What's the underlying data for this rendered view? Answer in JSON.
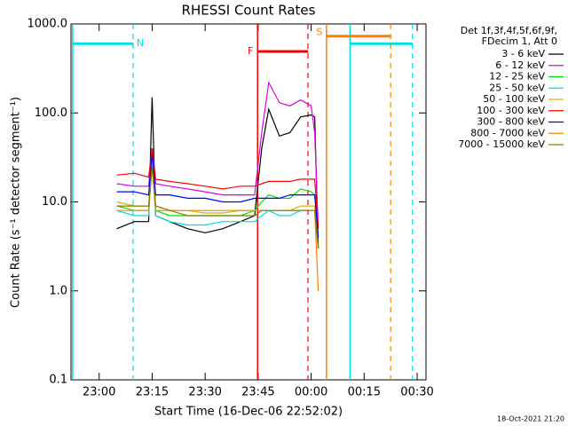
{
  "chart_data": {
    "type": "line",
    "title": "RHESSI Count Rates",
    "xlabel": "Start Time (16-Dec-06 22:52:02)",
    "ylabel": "Count Rate (s⁻¹ detector segment⁻¹)",
    "legend_title": [
      "Det 1f,3f,4f,5f,6f,9f,",
      "FDecim 1, Att 0"
    ],
    "footer": "18-Oct-2021 21:20",
    "log_y": true,
    "xlim": [
      "22:52:02",
      "00:32:30"
    ],
    "xticks": [
      "23:00",
      "23:15",
      "23:30",
      "23:45",
      "00:00",
      "00:15",
      "00:30"
    ],
    "ylim": [
      0.1,
      1000
    ],
    "yticks": [
      0.1,
      {
        "value": 1,
        "label": "1.0"
      },
      {
        "value": 10,
        "label": "10.0"
      },
      {
        "value": 100,
        "label": "100.0"
      },
      {
        "value": 1000,
        "label": "1000.0"
      }
    ],
    "x": [
      "23:05",
      "23:10",
      "23:14",
      "23:15",
      "23:16",
      "23:20",
      "23:25",
      "23:30",
      "23:35",
      "23:40",
      "23:44",
      "23:46",
      "23:48",
      "23:51",
      "23:54",
      "23:57",
      "00:00",
      "00:01",
      "00:02"
    ],
    "series": [
      {
        "name": "3 - 6 keV",
        "color": "#000000",
        "values": [
          5,
          6,
          6,
          150,
          7,
          6,
          5,
          4.5,
          5,
          6,
          7,
          40,
          110,
          55,
          60,
          90,
          95,
          90,
          3
        ]
      },
      {
        "name": "6 - 12 keV",
        "color": "#e000e0",
        "values": [
          16,
          15,
          15,
          40,
          16,
          15,
          14,
          13,
          12,
          12,
          12,
          60,
          220,
          130,
          120,
          140,
          120,
          60,
          5
        ]
      },
      {
        "name": "12 - 25 keV",
        "color": "#00e000",
        "values": [
          9,
          8,
          8,
          30,
          8,
          7,
          7,
          7,
          7,
          7,
          8,
          10,
          12,
          11,
          11,
          14,
          13,
          12,
          4
        ]
      },
      {
        "name": "25 - 50 keV",
        "color": "#00e0e0",
        "values": [
          8,
          7,
          7,
          30,
          7,
          6,
          5.5,
          5.5,
          6,
          6,
          6,
          7,
          8,
          7,
          7,
          8,
          8,
          8,
          3
        ]
      },
      {
        "name": "50 - 100 keV",
        "color": "#e0b000",
        "values": [
          10,
          9,
          9,
          30,
          9,
          8,
          8,
          7.5,
          7.5,
          8,
          8,
          8,
          8,
          8,
          8,
          9,
          9,
          9,
          3
        ]
      },
      {
        "name": "100 - 300 keV",
        "color": "#ff0000",
        "values": [
          20,
          21,
          19,
          40,
          18,
          17,
          16,
          15,
          14,
          15,
          15,
          16,
          17,
          17,
          17,
          18,
          18,
          18,
          5
        ]
      },
      {
        "name": "300 - 800 keV",
        "color": "#0000ff",
        "values": [
          13,
          13,
          12,
          35,
          12,
          12,
          11,
          11,
          10,
          10,
          11,
          11,
          11,
          11,
          12,
          12,
          12,
          12,
          4
        ]
      },
      {
        "name": "800 - 7000 keV",
        "color": "#ff8000",
        "values": [
          8,
          8,
          8,
          25,
          8,
          8,
          8,
          8,
          8,
          8,
          8,
          8,
          8,
          8,
          8,
          8,
          8,
          8,
          1
        ]
      },
      {
        "name": "7000 - 15000 keV",
        "color": "#808000",
        "values": [
          9,
          9,
          9,
          25,
          9,
          8,
          7,
          7,
          7,
          7,
          7,
          8,
          8,
          8,
          8,
          8,
          8,
          8,
          3
        ]
      }
    ],
    "flags": [
      {
        "label": "N",
        "color": "#00e0e0",
        "start": "22:52:30",
        "end": "23:09:36",
        "level": 600
      },
      {
        "color": "#00e0e0",
        "start": "00:11:00",
        "end": "00:28:40",
        "level": 600
      },
      {
        "label": "S",
        "color": "#ff8000",
        "start": "00:04:20",
        "end": "00:22:30",
        "level": 730
      },
      {
        "label": "F",
        "color": "#ff0000",
        "start": "23:44:50",
        "end": "23:59:06",
        "level": 490
      }
    ]
  }
}
